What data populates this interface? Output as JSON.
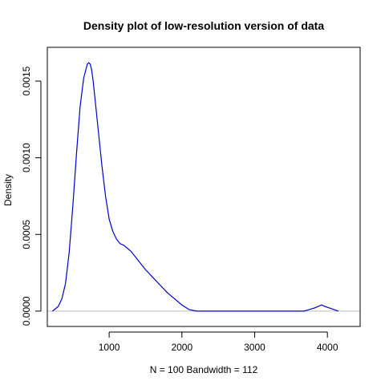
{
  "chart_data": {
    "type": "line",
    "title": "Density plot of low-resolution version of data",
    "xlabel": "N = 100   Bandwidth = 112",
    "ylabel": "Density",
    "xlim": [
      150,
      4450
    ],
    "ylim": [
      -0.0001,
      0.00172
    ],
    "x_ticks": [
      1000,
      2000,
      3000,
      4000
    ],
    "x_tick_labels": [
      "1000",
      "2000",
      "3000",
      "4000"
    ],
    "y_ticks": [
      0.0,
      0.0005,
      0.001,
      0.0015
    ],
    "y_tick_labels": [
      "0.0000",
      "0.0005",
      "0.0010",
      "0.0015"
    ],
    "baseline": 0,
    "series": [
      {
        "color": "#0000cc",
        "x": [
          220,
          300,
          350,
          400,
          450,
          500,
          550,
          600,
          650,
          700,
          720,
          740,
          760,
          780,
          800,
          850,
          900,
          950,
          1000,
          1050,
          1100,
          1150,
          1200,
          1250,
          1300,
          1400,
          1500,
          1600,
          1700,
          1800,
          1900,
          2000,
          2100,
          2200,
          2280,
          3680,
          3750,
          3820,
          3870,
          3920,
          3970,
          4030,
          4090,
          4150
        ],
        "y": [
          0.0,
          3e-05,
          8e-05,
          0.00018,
          0.00038,
          0.00068,
          0.00102,
          0.00133,
          0.00152,
          0.00161,
          0.00162,
          0.00161,
          0.00157,
          0.0015,
          0.00141,
          0.00118,
          0.00095,
          0.00075,
          0.0006,
          0.00052,
          0.00047,
          0.00044,
          0.00043,
          0.00041,
          0.00039,
          0.00033,
          0.00027,
          0.00022,
          0.00017,
          0.00012,
          8e-05,
          4e-05,
          1e-05,
          0.0,
          0.0,
          0.0,
          1e-05,
          2e-05,
          3e-05,
          4e-05,
          3e-05,
          2e-05,
          1e-05,
          0.0
        ]
      }
    ],
    "colors": {
      "line": "#0000cc",
      "baseline": "#bebebe",
      "axis": "#000000"
    },
    "grid": false
  }
}
